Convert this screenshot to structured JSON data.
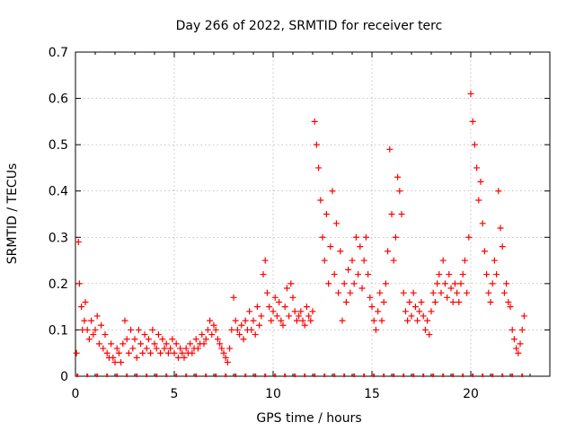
{
  "chart_data": {
    "type": "scatter",
    "title": "Day 266 of 2022, SRMTID for receiver terc",
    "xlabel": "GPS time / hours",
    "ylabel": "SRMTID / TECUs",
    "xlim": [
      0,
      24
    ],
    "ylim": [
      0,
      0.7
    ],
    "xticks": [
      0,
      5,
      10,
      15,
      20
    ],
    "xtick_labels": [
      "0",
      "5",
      "10",
      "15",
      "20"
    ],
    "yticks": [
      0,
      0.1,
      0.2,
      0.3,
      0.4,
      0.5,
      0.6,
      0.7
    ],
    "ytick_labels": [
      "0",
      "0.1",
      "0.2",
      "0.3",
      "0.4",
      "0.5",
      "0.6",
      "0.7"
    ],
    "grid": true,
    "marker": "plus",
    "color": "#ff0000",
    "series": [
      {
        "name": "SRMTID",
        "x": [
          0.05,
          0.15,
          0.2,
          0.3,
          0.35,
          0.45,
          0.5,
          0.6,
          0.7,
          0.8,
          0.9,
          1.0,
          1.1,
          1.2,
          1.3,
          1.4,
          1.5,
          1.6,
          1.7,
          1.8,
          1.9,
          2.0,
          2.1,
          2.2,
          2.3,
          2.4,
          2.5,
          2.6,
          2.7,
          2.8,
          2.9,
          3.0,
          3.1,
          3.2,
          3.3,
          3.4,
          3.5,
          3.6,
          3.7,
          3.8,
          3.9,
          4.0,
          4.1,
          4.2,
          4.3,
          4.4,
          4.5,
          4.6,
          4.7,
          4.8,
          4.9,
          5.0,
          5.1,
          5.2,
          5.3,
          5.4,
          5.5,
          5.6,
          5.7,
          5.8,
          5.9,
          6.0,
          6.1,
          6.2,
          6.3,
          6.4,
          6.5,
          6.6,
          6.7,
          6.8,
          6.9,
          7.0,
          7.1,
          7.2,
          7.3,
          7.4,
          7.5,
          7.6,
          7.7,
          7.8,
          7.9,
          8.0,
          8.1,
          8.2,
          8.3,
          8.4,
          8.5,
          8.6,
          8.7,
          8.8,
          8.9,
          9.0,
          9.1,
          9.2,
          9.3,
          9.4,
          9.5,
          9.6,
          9.7,
          9.8,
          9.9,
          10.0,
          10.1,
          10.2,
          10.3,
          10.4,
          10.5,
          10.6,
          10.7,
          10.8,
          10.9,
          11.0,
          11.1,
          11.2,
          11.3,
          11.4,
          11.5,
          11.6,
          11.7,
          11.8,
          11.9,
          12.0,
          12.1,
          12.2,
          12.3,
          12.4,
          12.5,
          12.6,
          12.7,
          12.8,
          12.9,
          13.0,
          13.1,
          13.2,
          13.3,
          13.4,
          13.5,
          13.6,
          13.7,
          13.8,
          13.9,
          14.0,
          14.1,
          14.2,
          14.3,
          14.4,
          14.5,
          14.6,
          14.7,
          14.8,
          14.9,
          15.0,
          15.1,
          15.2,
          15.3,
          15.4,
          15.5,
          15.6,
          15.7,
          15.8,
          15.9,
          16.0,
          16.1,
          16.2,
          16.3,
          16.4,
          16.5,
          16.6,
          16.7,
          16.8,
          16.9,
          17.0,
          17.1,
          17.2,
          17.3,
          17.4,
          17.5,
          17.6,
          17.7,
          17.8,
          17.9,
          18.0,
          18.1,
          18.2,
          18.3,
          18.4,
          18.5,
          18.6,
          18.7,
          18.8,
          18.9,
          19.0,
          19.1,
          19.2,
          19.3,
          19.4,
          19.5,
          19.6,
          19.7,
          19.8,
          19.9,
          20.0,
          20.1,
          20.2,
          20.3,
          20.4,
          20.5,
          20.6,
          20.7,
          20.8,
          20.9,
          21.0,
          21.1,
          21.2,
          21.3,
          21.4,
          21.5,
          21.6,
          21.7,
          21.8,
          21.9,
          22.0,
          22.1,
          22.2,
          22.3,
          22.4,
          22.5,
          22.6,
          22.7
        ],
        "y": [
          0.05,
          0.29,
          0.2,
          0.15,
          0.1,
          0.12,
          0.16,
          0.1,
          0.08,
          0.12,
          0.09,
          0.1,
          0.13,
          0.07,
          0.11,
          0.06,
          0.09,
          0.05,
          0.04,
          0.07,
          0.04,
          0.03,
          0.06,
          0.05,
          0.03,
          0.07,
          0.12,
          0.08,
          0.05,
          0.1,
          0.06,
          0.08,
          0.04,
          0.1,
          0.07,
          0.05,
          0.09,
          0.06,
          0.08,
          0.05,
          0.1,
          0.07,
          0.06,
          0.09,
          0.05,
          0.08,
          0.06,
          0.07,
          0.05,
          0.06,
          0.08,
          0.05,
          0.07,
          0.04,
          0.06,
          0.05,
          0.04,
          0.06,
          0.05,
          0.07,
          0.05,
          0.06,
          0.08,
          0.06,
          0.07,
          0.09,
          0.07,
          0.08,
          0.1,
          0.12,
          0.09,
          0.11,
          0.1,
          0.08,
          0.07,
          0.06,
          0.05,
          0.04,
          0.03,
          0.06,
          0.1,
          0.17,
          0.12,
          0.1,
          0.09,
          0.11,
          0.08,
          0.12,
          0.1,
          0.14,
          0.1,
          0.12,
          0.09,
          0.15,
          0.11,
          0.13,
          0.22,
          0.25,
          0.18,
          0.15,
          0.12,
          0.14,
          0.17,
          0.13,
          0.16,
          0.12,
          0.11,
          0.15,
          0.19,
          0.13,
          0.2,
          0.17,
          0.14,
          0.12,
          0.13,
          0.14,
          0.12,
          0.11,
          0.15,
          0.13,
          0.12,
          0.14,
          0.55,
          0.5,
          0.45,
          0.38,
          0.3,
          0.25,
          0.35,
          0.2,
          0.28,
          0.4,
          0.22,
          0.33,
          0.18,
          0.27,
          0.12,
          0.2,
          0.16,
          0.23,
          0.18,
          0.25,
          0.2,
          0.3,
          0.22,
          0.28,
          0.19,
          0.25,
          0.3,
          0.22,
          0.17,
          0.15,
          0.12,
          0.1,
          0.14,
          0.18,
          0.12,
          0.16,
          0.2,
          0.27,
          0.49,
          0.35,
          0.25,
          0.3,
          0.43,
          0.4,
          0.35,
          0.18,
          0.14,
          0.12,
          0.16,
          0.13,
          0.18,
          0.15,
          0.12,
          0.14,
          0.16,
          0.13,
          0.1,
          0.12,
          0.09,
          0.14,
          0.18,
          0.16,
          0.2,
          0.22,
          0.18,
          0.25,
          0.2,
          0.17,
          0.22,
          0.19,
          0.16,
          0.2,
          0.18,
          0.16,
          0.2,
          0.22,
          0.25,
          0.18,
          0.3,
          0.61,
          0.55,
          0.5,
          0.45,
          0.38,
          0.42,
          0.33,
          0.27,
          0.22,
          0.18,
          0.16,
          0.2,
          0.25,
          0.22,
          0.4,
          0.32,
          0.28,
          0.18,
          0.2,
          0.16,
          0.15,
          0.1,
          0.08,
          0.06,
          0.05,
          0.07,
          0.1,
          0.13
        ]
      }
    ]
  }
}
